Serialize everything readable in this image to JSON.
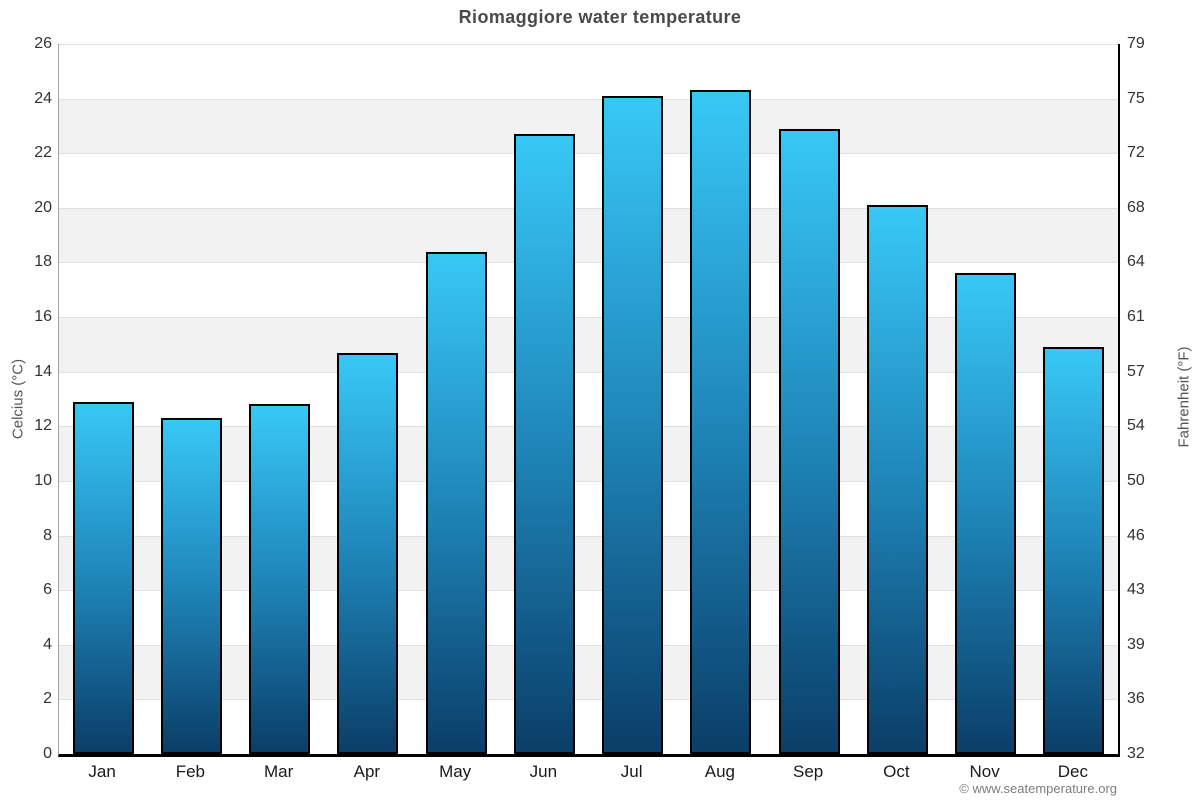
{
  "page": {
    "title": "Riomaggiore water temperature",
    "copyright": "© www.seatemperature.org"
  },
  "chart_data": {
    "type": "bar",
    "title": "Riomaggiore water temperature",
    "categories": [
      "Jan",
      "Feb",
      "Mar",
      "Apr",
      "May",
      "Jun",
      "Jul",
      "Aug",
      "Sep",
      "Oct",
      "Nov",
      "Dec"
    ],
    "series": [
      {
        "name": "Water temperature",
        "unit": "°C",
        "values": [
          12.9,
          12.3,
          12.8,
          14.7,
          18.4,
          22.7,
          24.1,
          24.3,
          22.9,
          20.1,
          17.6,
          14.9
        ]
      }
    ],
    "xlabel": "",
    "ylabel_left": "Celcius (°C)",
    "ylabel_right": "Fahrenheit (°F)",
    "ylim_celsius": [
      0,
      26
    ],
    "yticks_celsius": [
      0,
      2,
      4,
      6,
      8,
      10,
      12,
      14,
      16,
      18,
      20,
      22,
      24,
      26
    ],
    "yticks_fahrenheit": [
      32,
      36,
      39,
      43,
      46,
      50,
      54,
      57,
      61,
      64,
      68,
      72,
      75,
      79
    ],
    "grid": "horizontal alternating bands every 2°C, thin gridline at each tick",
    "legend_position": "none"
  },
  "colors": {
    "band_white": "#ffffff",
    "band_gray": "#f2f2f2",
    "gridline": "#e0e0e0",
    "bar_top": "#38c8f6",
    "bar_mid": "#1f86ba",
    "bar_bottom": "#0b3e68",
    "bar_border": "#000000",
    "title_text": "#4a4a4a",
    "tick_text": "#333333",
    "month_text": "#1a1a1a",
    "axis_title_text": "#555555",
    "copyright_text": "#7d7d7d"
  }
}
